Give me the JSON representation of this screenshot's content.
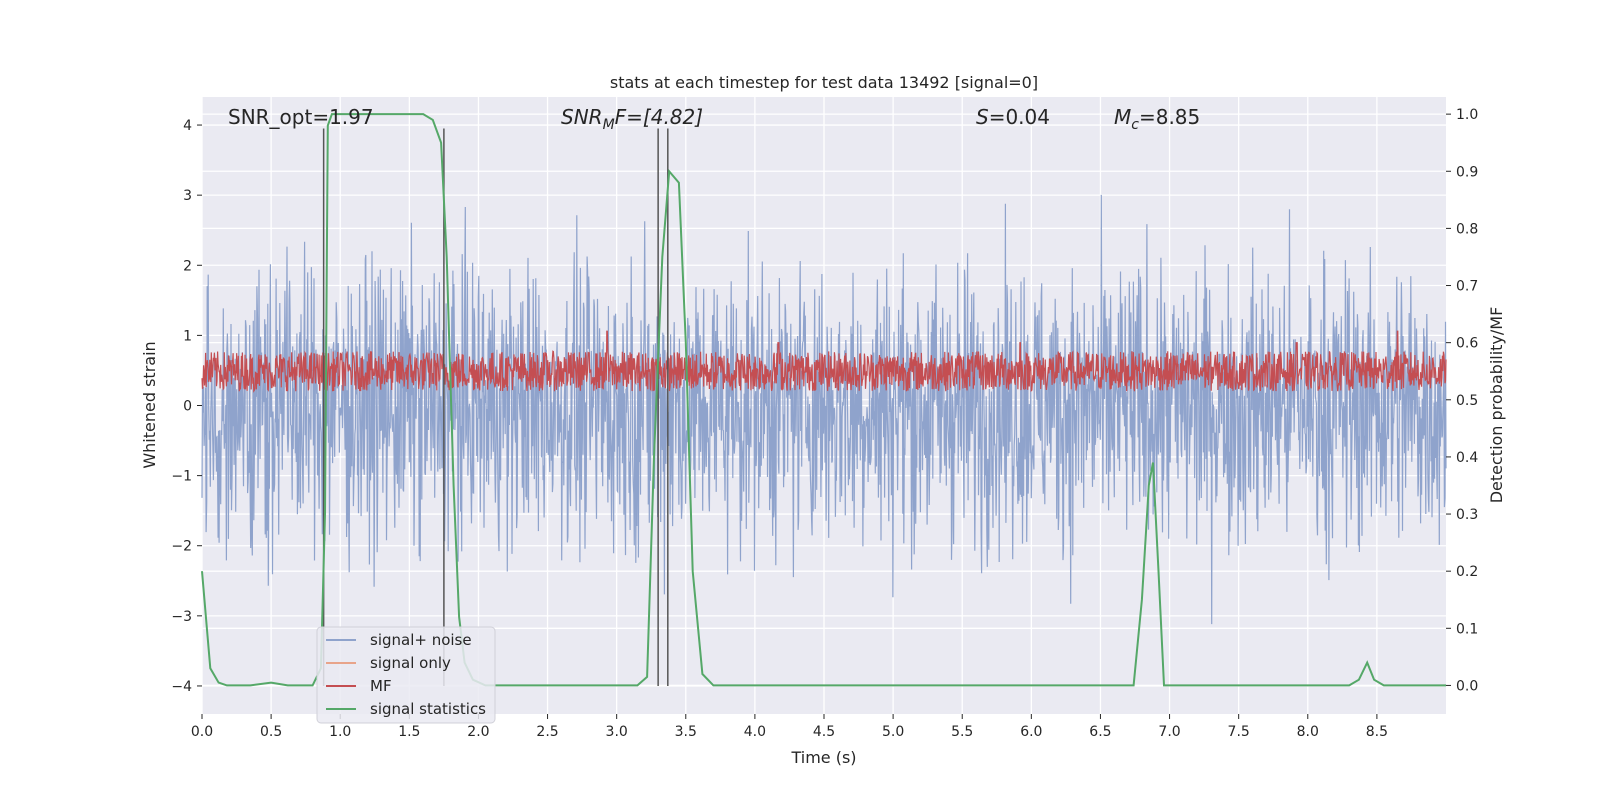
{
  "chart_data": {
    "type": "line",
    "title": "stats at each timestep for test data 13492 [signal=0]",
    "xlabel": "Time (s)",
    "ylabel_left": "Whitened strain",
    "ylabel_right": "Detection probability/MF",
    "xlim": [
      0.0,
      9.0
    ],
    "ylim_left": [
      -4.4,
      4.4
    ],
    "ylim_right": [
      -0.05,
      1.03
    ],
    "x_ticks": [
      "0.0",
      "0.5",
      "1.0",
      "1.5",
      "2.0",
      "2.5",
      "3.0",
      "3.5",
      "4.0",
      "4.5",
      "5.0",
      "5.5",
      "6.0",
      "6.5",
      "7.0",
      "7.5",
      "8.0",
      "8.5"
    ],
    "y_ticks_left": [
      "4",
      "3",
      "2",
      "1",
      "0",
      "−1",
      "−2",
      "−3",
      "−4"
    ],
    "y_ticks_right": [
      "1.0",
      "0.9",
      "0.8",
      "0.7",
      "0.6",
      "0.5",
      "0.4",
      "0.3",
      "0.2",
      "0.1",
      "0.0"
    ],
    "grid": true,
    "legend_placement": "lower-left",
    "annotations": {
      "snr_opt": "SNR_opt=1.97",
      "snr_mf_main": "SNR",
      "snr_mf_sub": "M",
      "snr_mf_rest": "F=[4.82]",
      "s_italic": "S",
      "s_rest": "=0.04",
      "mc_main": "M",
      "mc_sub": "c",
      "mc_rest": "=8.85"
    },
    "vertical_lines_x": [
      0.88,
      1.75,
      3.3,
      3.37
    ],
    "series": [
      {
        "name": "signal+ noise",
        "color": "#8fa3cc",
        "axis": "left",
        "description_stats": {
          "envelope_max": 4.0,
          "envelope_min": -4.0
        }
      },
      {
        "name": "signal only",
        "color": "#e8a48a",
        "axis": "left"
      },
      {
        "name": "MF",
        "color": "#c44e52",
        "axis": "right",
        "baseline": 0.55,
        "spikes": [
          [
            2.93,
            0.62
          ],
          [
            4.17,
            0.6
          ],
          [
            5.92,
            0.6
          ],
          [
            7.92,
            0.6
          ],
          [
            8.65,
            0.62
          ]
        ]
      },
      {
        "name": "signal statistics",
        "color": "#55a868",
        "axis": "right",
        "x": [
          0.0,
          0.06,
          0.12,
          0.18,
          0.25,
          0.35,
          0.5,
          0.62,
          0.8,
          0.86,
          0.89,
          0.91,
          0.94,
          1.0,
          1.2,
          1.4,
          1.6,
          1.67,
          1.73,
          1.77,
          1.82,
          1.86,
          1.9,
          1.96,
          2.05,
          2.2,
          2.5,
          3.0,
          3.15,
          3.22,
          3.27,
          3.33,
          3.38,
          3.45,
          3.5,
          3.55,
          3.62,
          3.7,
          3.8,
          4.5,
          5.5,
          6.5,
          6.74,
          6.8,
          6.85,
          6.88,
          6.92,
          6.96,
          7.05,
          8.0,
          8.3,
          8.37,
          8.43,
          8.48,
          8.55,
          9.0
        ],
        "y": [
          0.2,
          0.03,
          0.005,
          0.0,
          0.0,
          0.0,
          0.005,
          0.0,
          0.0,
          0.03,
          0.3,
          0.98,
          1.0,
          1.0,
          1.0,
          1.0,
          1.0,
          0.99,
          0.95,
          0.75,
          0.35,
          0.12,
          0.04,
          0.01,
          0.0,
          0.0,
          0.0,
          0.0,
          0.0,
          0.015,
          0.4,
          0.75,
          0.9,
          0.88,
          0.6,
          0.2,
          0.02,
          0.0,
          0.0,
          0.0,
          0.0,
          0.0,
          0.0,
          0.15,
          0.35,
          0.39,
          0.2,
          0.0,
          0.0,
          0.0,
          0.0,
          0.01,
          0.04,
          0.01,
          0.0,
          0.0
        ]
      }
    ]
  }
}
